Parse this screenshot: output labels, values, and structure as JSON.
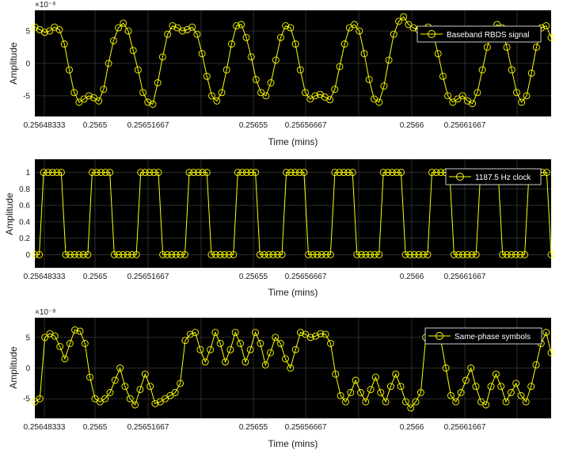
{
  "chart_data": [
    {
      "type": "line",
      "xlabel": "Time (mins)",
      "ylabel": "Amplitude",
      "y_exponent": "×10⁻⁸",
      "ylim": [
        -8.2,
        8.2
      ],
      "yticks": [
        -5,
        0,
        5
      ],
      "xticks": [
        "0.25648333",
        "0.2565",
        "0.25651667",
        "0.25655",
        "0.25656667",
        "0.2566",
        "0.25661667"
      ],
      "grid": true,
      "legend_position": "top-right",
      "series": [
        {
          "name": "Baseband RBDS signal",
          "marker": "circle",
          "values": [
            5.6,
            5.2,
            4.8,
            5.0,
            5.6,
            5.2,
            3.0,
            -1.0,
            -4.5,
            -6.0,
            -5.5,
            -5.0,
            -5.3,
            -5.8,
            -4.0,
            0.0,
            3.5,
            5.5,
            6.2,
            5.0,
            2.0,
            -1.0,
            -4.5,
            -6.0,
            -6.3,
            -3.0,
            1.0,
            4.5,
            5.8,
            5.5,
            5.0,
            5.2,
            5.6,
            4.5,
            1.5,
            -2.0,
            -5.0,
            -5.8,
            -4.5,
            -1.0,
            3.0,
            5.8,
            6.0,
            4.0,
            1.0,
            -2.5,
            -4.5,
            -5.0,
            -3.0,
            0.5,
            4.0,
            5.8,
            5.5,
            3.0,
            -1.0,
            -4.5,
            -5.5,
            -5.0,
            -4.8,
            -5.2,
            -5.6,
            -4.0,
            -0.5,
            3.0,
            5.5,
            6.0,
            5.0,
            1.5,
            -2.5,
            -5.5,
            -6.0,
            -3.5,
            0.5,
            4.5,
            6.5,
            7.2,
            6.0,
            5.5,
            5.2,
            5.0,
            5.6,
            4.5,
            1.5,
            -2.0,
            -5.0,
            -6.0,
            -5.5,
            -5.0,
            -5.8,
            -6.2,
            -4.5,
            -1.0,
            2.5,
            5.0,
            6.0,
            5.5,
            2.5,
            -1.0,
            -4.5,
            -6.0,
            -5.0,
            -1.5,
            2.5,
            5.5,
            5.8,
            4.0
          ],
          "color": "#ffff00"
        }
      ]
    },
    {
      "type": "line",
      "xlabel": "Time (mins)",
      "ylabel": "Amplitude",
      "ylim": [
        -0.16,
        1.16
      ],
      "yticks": [
        0,
        0.2,
        0.4,
        0.6,
        0.8,
        1
      ],
      "ytick_labels": [
        "0",
        "0.2",
        "0.4",
        "0.6",
        "0.8",
        "1"
      ],
      "xticks": [
        "0.25648333",
        "0.2565",
        "0.25651667",
        "0.25655",
        "0.25656667",
        "0.2566",
        "0.25661667"
      ],
      "grid": true,
      "legend_position": "top-right",
      "series": [
        {
          "name": "1187.5 Hz clock",
          "marker": "circle",
          "values": [
            0,
            0,
            1,
            1,
            1,
            1,
            1,
            0,
            0,
            0,
            0,
            0,
            0,
            1,
            1,
            1,
            1,
            1,
            0,
            0,
            0,
            0,
            0,
            0,
            1,
            1,
            1,
            1,
            1,
            0,
            0,
            0,
            0,
            0,
            0,
            1,
            1,
            1,
            1,
            1,
            0,
            0,
            0,
            0,
            0,
            0,
            1,
            1,
            1,
            1,
            1,
            0,
            0,
            0,
            0,
            0,
            0,
            1,
            1,
            1,
            1,
            1,
            0,
            0,
            0,
            0,
            0,
            0,
            1,
            1,
            1,
            1,
            1,
            0,
            0,
            0,
            0,
            0,
            0,
            1,
            1,
            1,
            1,
            1,
            0,
            0,
            0,
            0,
            0,
            0,
            1,
            1,
            1,
            1,
            1,
            0,
            0,
            0,
            0,
            0,
            0,
            1,
            1,
            1,
            1,
            1,
            0,
            0,
            0,
            0,
            0,
            0,
            1,
            1,
            1,
            1,
            1,
            0
          ],
          "color": "#ffff00"
        }
      ]
    },
    {
      "type": "line",
      "xlabel": "Time (mins)",
      "ylabel": "Amplitude",
      "y_exponent": "×10⁻⁸",
      "ylim": [
        -8.2,
        8.2
      ],
      "yticks": [
        -5,
        0,
        5
      ],
      "xticks": [
        "0.25648333",
        "0.2565",
        "0.25651667",
        "0.25655",
        "0.25656667",
        "0.2566",
        "0.25661667"
      ],
      "grid": true,
      "legend_position": "top-right",
      "series": [
        {
          "name": "Same-phase symbols",
          "marker": "circle",
          "values": [
            -5.5,
            -5.0,
            5.0,
            5.6,
            5.2,
            3.5,
            1.5,
            4.0,
            6.2,
            6.0,
            4.0,
            -1.5,
            -5.0,
            -5.5,
            -5.0,
            -4.0,
            -2.0,
            0.0,
            -3.0,
            -5.0,
            -6.0,
            -3.5,
            -1.0,
            -3.0,
            -5.8,
            -5.5,
            -5.0,
            -4.5,
            -4.0,
            -2.5,
            4.5,
            5.5,
            5.8,
            3.0,
            1.0,
            3.0,
            5.8,
            4.0,
            1.0,
            3.0,
            5.8,
            4.0,
            1.0,
            3.0,
            5.8,
            4.0,
            0.5,
            2.5,
            5.0,
            4.0,
            1.5,
            0.0,
            3.0,
            5.8,
            5.5,
            5.0,
            5.2,
            5.6,
            5.5,
            4.0,
            -1.0,
            -4.5,
            -5.5,
            -4.0,
            -2.0,
            -4.0,
            -5.5,
            -3.5,
            -1.5,
            -4.0,
            -5.5,
            -3.0,
            -1.0,
            -3.0,
            -5.5,
            -6.5,
            -5.5,
            -4.0,
            5.0,
            5.5,
            6.0,
            4.5,
            0.0,
            -4.5,
            -5.5,
            -4.0,
            -2.0,
            0.0,
            -3.0,
            -5.5,
            -6.0,
            -3.0,
            -1.0,
            -3.0,
            -5.5,
            -4.0,
            -2.5,
            -4.5,
            -5.5,
            -3.0,
            0.5,
            4.0,
            5.8,
            2.5
          ],
          "color": "#ffff00"
        }
      ]
    }
  ]
}
